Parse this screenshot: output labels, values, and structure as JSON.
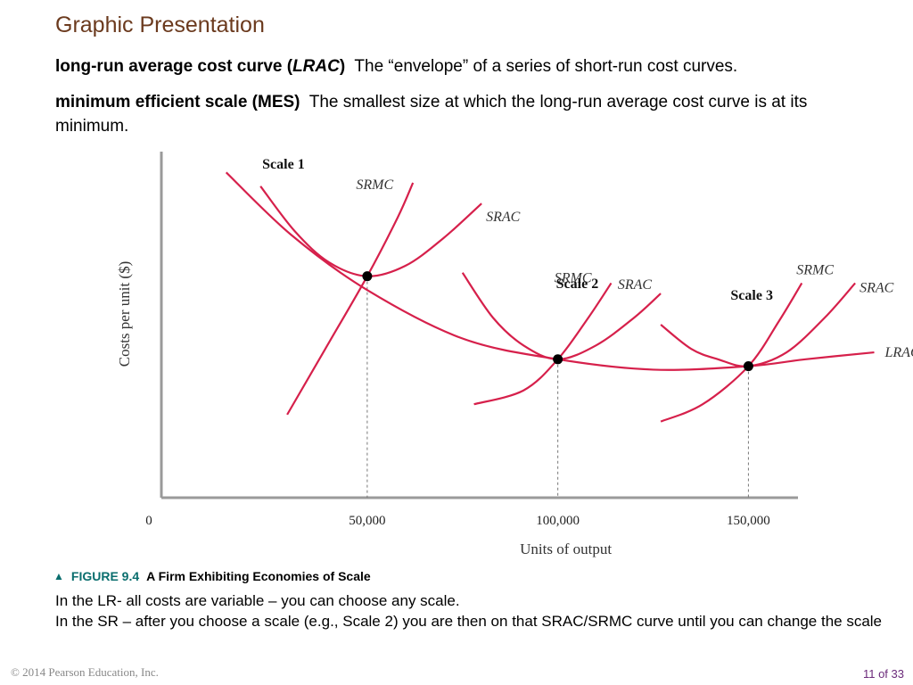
{
  "slide": {
    "title": "Graphic Presentation",
    "definitions": [
      {
        "term_pre": "long-run average cost curve (",
        "term_italic": "LRAC",
        "term_post": ")",
        "text": "The “envelope” of a series of short-run cost curves."
      },
      {
        "term_pre": "minimum efficient scale (MES)",
        "term_italic": "",
        "term_post": "",
        "text": "The smallest size at which the long-run average cost curve is at its minimum."
      }
    ]
  },
  "figure": {
    "caption_number": "FIGURE 9.4",
    "caption_title": "A Firm Exhibiting Economies of Scale"
  },
  "notes": [
    "In the LR- all costs are variable – you can choose any scale.",
    "In the SR – after you choose a scale (e.g., Scale 2) you are then on that SRAC/SRMC curve until you can change the scale"
  ],
  "footer": {
    "copyright": "© 2014 Pearson Education, Inc.",
    "page": "11 of 33"
  },
  "chart_data": {
    "type": "line",
    "title": "",
    "xlabel": "Units of output",
    "ylabel": "Costs per unit ($)",
    "origin_label": "0",
    "x_ticks": [
      {
        "value": 50000,
        "label": "50,000"
      },
      {
        "value": 100000,
        "label": "100,000"
      },
      {
        "value": 150000,
        "label": "150,000"
      }
    ],
    "xlim": [
      -4000,
      163000
    ],
    "ylim": [
      0,
      100
    ],
    "curve_color": "#d6204b",
    "scales": [
      {
        "label": "Scale 1",
        "min_point": {
          "x": 50000,
          "y": 64
        },
        "srac": {
          "label": "SRAC",
          "points": [
            [
              22000,
              90
            ],
            [
              31000,
              77
            ],
            [
              40000,
              68
            ],
            [
              50000,
              64
            ],
            [
              60000,
              67
            ],
            [
              70000,
              75
            ],
            [
              80000,
              85
            ]
          ]
        },
        "srmc": {
          "label": "SRMC",
          "points": [
            [
              29000,
              24
            ],
            [
              39000,
              43
            ],
            [
              50000,
              64
            ],
            [
              58000,
              81
            ],
            [
              62000,
              91
            ]
          ]
        }
      },
      {
        "label": "Scale 2",
        "min_point": {
          "x": 100000,
          "y": 40
        },
        "srac": {
          "label": "SRAC",
          "points": [
            [
              75000,
              65
            ],
            [
              83000,
              52
            ],
            [
              91000,
              44
            ],
            [
              100000,
              40
            ],
            [
              110000,
              44
            ],
            [
              120000,
              52
            ],
            [
              127000,
              59
            ]
          ]
        },
        "srmc": {
          "label": "SRMC",
          "points": [
            [
              78000,
              27
            ],
            [
              91000,
              31
            ],
            [
              100000,
              40
            ],
            [
              108000,
              52
            ],
            [
              114000,
              62
            ]
          ]
        }
      },
      {
        "label": "Scale 3",
        "min_point": {
          "x": 150000,
          "y": 38
        },
        "srac": {
          "label": "SRAC",
          "points": [
            [
              127000,
              50
            ],
            [
              135000,
              43
            ],
            [
              142000,
              40
            ],
            [
              150000,
              38
            ],
            [
              160000,
              42
            ],
            [
              170000,
              52
            ],
            [
              178000,
              62
            ]
          ]
        },
        "srmc": {
          "label": "SRMC",
          "points": [
            [
              127000,
              22
            ],
            [
              138000,
              27
            ],
            [
              150000,
              38
            ],
            [
              158000,
              51
            ],
            [
              164000,
              62
            ]
          ]
        }
      }
    ],
    "lrac": {
      "label": "LRAC",
      "points": [
        [
          13000,
          94
        ],
        [
          30000,
          76
        ],
        [
          50000,
          60
        ],
        [
          75000,
          46
        ],
        [
          100000,
          40
        ],
        [
          125000,
          37
        ],
        [
          150000,
          38
        ],
        [
          165000,
          40
        ],
        [
          183000,
          42
        ]
      ]
    }
  }
}
